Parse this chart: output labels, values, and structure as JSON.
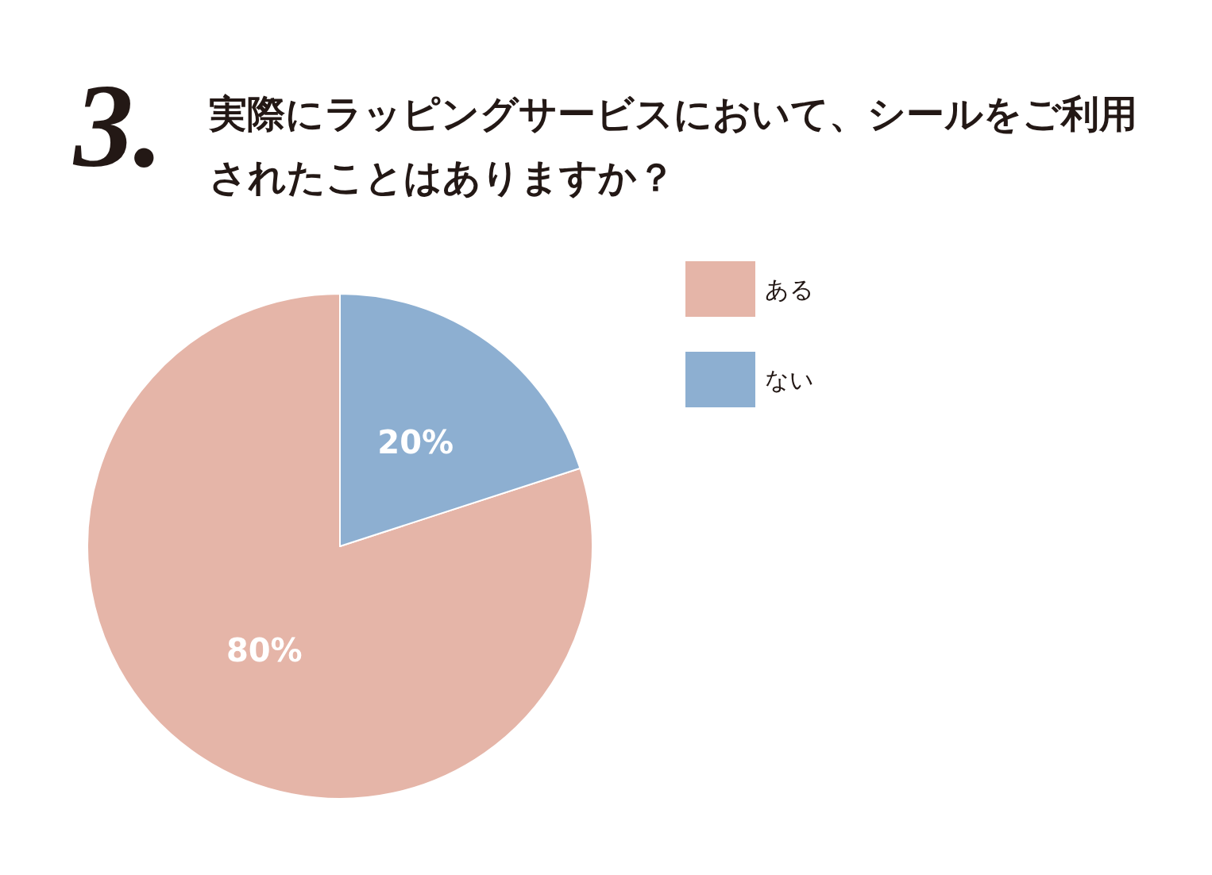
{
  "chart_data": {
    "type": "pie",
    "title": "3.",
    "subtitle": "実際にラッピングサービスにおいて、シールをご利用されたことはありますか？",
    "categories": [
      "ある",
      "ない"
    ],
    "values": [
      80,
      20
    ],
    "colors": [
      "#e5b5a8",
      "#8dafd1"
    ],
    "value_labels": [
      "80%",
      "20%"
    ],
    "legend": "top right"
  }
}
